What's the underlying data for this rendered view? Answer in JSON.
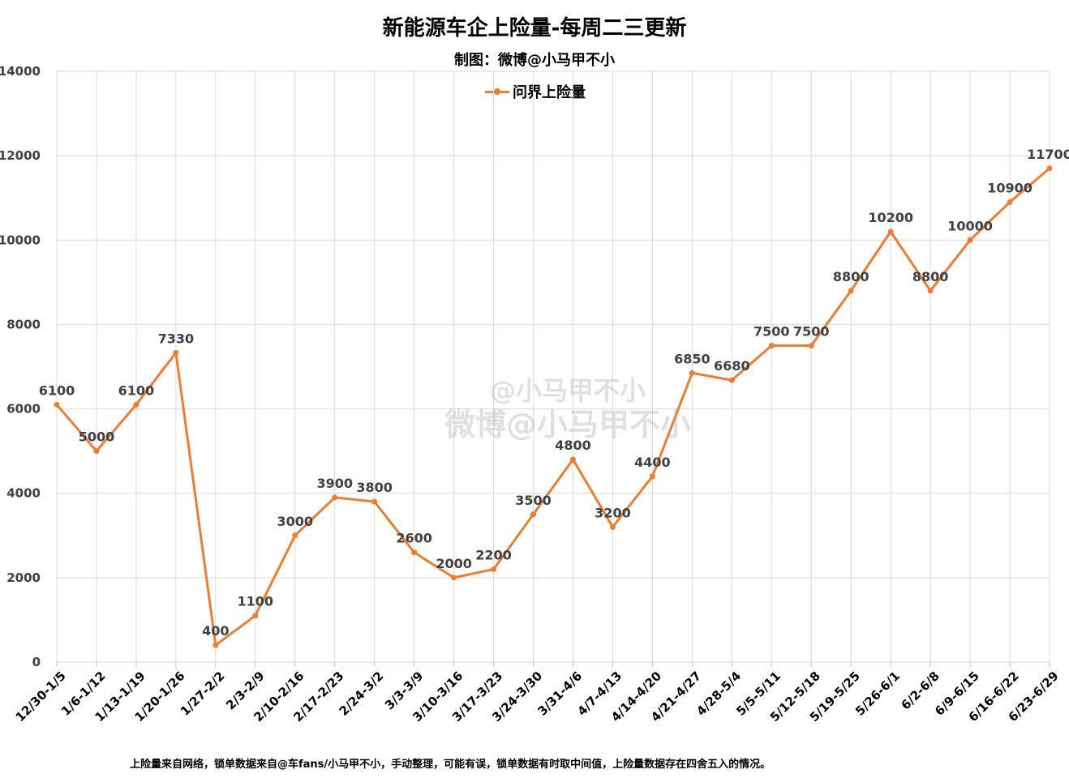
{
  "colors": {
    "series": "#ED7D31",
    "grid": "#D9D9D9",
    "text": "#404040"
  },
  "chart_data": {
    "type": "line",
    "title": "新能源车企上险量-每周二三更新",
    "subtitle": "制图：微博@小马甲不小",
    "xlabel": "",
    "ylabel": "",
    "ylim": [
      0,
      14000
    ],
    "yticks": [
      0,
      2000,
      4000,
      6000,
      8000,
      10000,
      12000,
      14000
    ],
    "grid": true,
    "legend_position": "top-center",
    "categories": [
      "12/30-1/5",
      "1/6-1/12",
      "1/13-1/19",
      "1/20-1/26",
      "1/27-2/2",
      "2/3-2/9",
      "2/10-2/16",
      "2/17-2/23",
      "2/24-3/2",
      "3/3-3/9",
      "3/10-3/16",
      "3/17-3/23",
      "3/24-3/30",
      "3/31-4/6",
      "4/7-4/13",
      "4/14-4/20",
      "4/21-4/27",
      "4/28-5/4",
      "5/5-5/11",
      "5/12-5/18",
      "5/19-5/25",
      "5/26-6/1",
      "6/2-6/8",
      "6/9-6/15",
      "6/16-6/22",
      "6/23-6/29"
    ],
    "series": [
      {
        "name": "问界上险量",
        "values": [
          6100,
          5000,
          6100,
          7330,
          400,
          1100,
          3000,
          3900,
          3800,
          2600,
          2000,
          2200,
          3500,
          4800,
          3200,
          4400,
          6850,
          6680,
          7500,
          7500,
          8800,
          10200,
          8800,
          10000,
          10900,
          11700
        ]
      }
    ]
  },
  "footnote": "上险量来自网络，锁单数据来自@车fans/小马甲不小，手动整理，可能有误，锁单数据有时取中间值，上险量数据存在四舍五入的情况。",
  "watermark": {
    "line1": "@小马甲不小",
    "line2": "微博@小马甲不小"
  }
}
